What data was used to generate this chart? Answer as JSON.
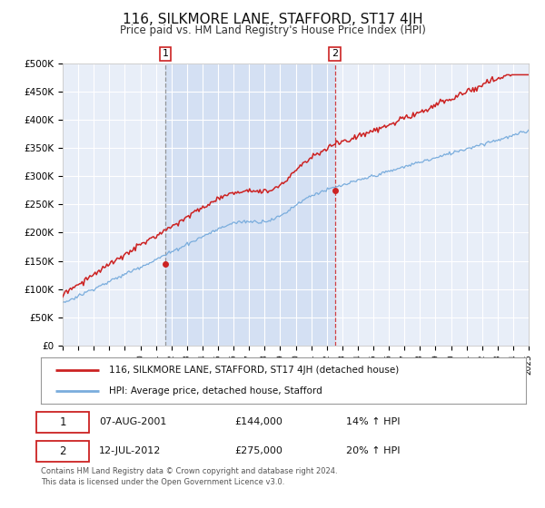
{
  "title": "116, SILKMORE LANE, STAFFORD, ST17 4JH",
  "subtitle": "Price paid vs. HM Land Registry's House Price Index (HPI)",
  "title_fontsize": 11,
  "subtitle_fontsize": 8.5,
  "hpi_color": "#7aaddd",
  "price_color": "#cc2222",
  "marker_color": "#cc2222",
  "background_color": "#ffffff",
  "plot_bg_color": "#e8eef8",
  "grid_color": "#ffffff",
  "ylim": [
    0,
    500000
  ],
  "yticks": [
    0,
    50000,
    100000,
    150000,
    200000,
    250000,
    300000,
    350000,
    400000,
    450000,
    500000
  ],
  "ytick_labels": [
    "£0",
    "£50K",
    "£100K",
    "£150K",
    "£200K",
    "£250K",
    "£300K",
    "£350K",
    "£400K",
    "£450K",
    "£500K"
  ],
  "sale1_date": "07-AUG-2001",
  "sale1_price": 144000,
  "sale1_x": 2001.6,
  "sale1_label": "14% ↑ HPI",
  "sale1_linestyle": "--",
  "sale1_linecolor": "#888888",
  "sale2_date": "12-JUL-2012",
  "sale2_price": 275000,
  "sale2_x": 2012.53,
  "sale2_label": "20% ↑ HPI",
  "sale2_linestyle": "--",
  "sale2_linecolor": "#cc2222",
  "legend_line1": "116, SILKMORE LANE, STAFFORD, ST17 4JH (detached house)",
  "legend_line2": "HPI: Average price, detached house, Stafford",
  "footer1": "Contains HM Land Registry data © Crown copyright and database right 2024.",
  "footer2": "This data is licensed under the Open Government Licence v3.0.",
  "xmin": 1995,
  "xmax": 2025,
  "shade_color": "#c8d8f0",
  "shade_alpha": 0.6
}
